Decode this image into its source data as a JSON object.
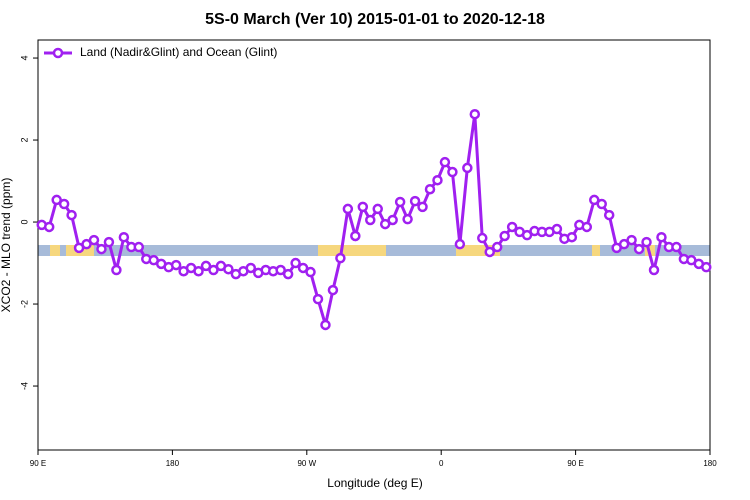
{
  "chart_data": {
    "type": "line",
    "title": "5S-0 March (Ver 10)   2015-01-01 to 2020-12-18",
    "xlabel": "Longitude (deg E)",
    "ylabel": "XCO2 - MLO trend (ppm)",
    "xlim": [
      90,
      540
    ],
    "xticks": [
      {
        "value": 90,
        "label": "90 E"
      },
      {
        "value": 180,
        "label": "180"
      },
      {
        "value": 270,
        "label": "90 W"
      },
      {
        "value": 360,
        "label": "0"
      },
      {
        "value": 450,
        "label": "90 E"
      },
      {
        "value": 540,
        "label": "180"
      }
    ],
    "ylim": [
      -5.56,
      4.44
    ],
    "yticks": [
      -4,
      -2,
      0,
      2,
      4
    ],
    "legend": "top-left",
    "x": [
      92.5,
      97.5,
      102.5,
      107.5,
      112.5,
      117.5,
      122.5,
      127.5,
      132.5,
      137.5,
      142.5,
      147.5,
      152.5,
      157.5,
      162.5,
      167.5,
      172.5,
      177.5,
      182.5,
      187.5,
      192.5,
      197.5,
      202.5,
      207.5,
      212.5,
      217.5,
      222.5,
      227.5,
      232.5,
      237.5,
      242.5,
      247.5,
      252.5,
      257.5,
      262.5,
      267.5,
      272.5,
      277.5,
      282.5,
      287.5,
      292.5,
      297.5,
      302.5,
      307.5,
      312.5,
      317.5,
      322.5,
      327.5,
      332.5,
      337.5,
      342.5,
      347.5,
      352.5,
      357.5,
      362.5,
      367.5,
      372.5,
      377.5,
      382.5,
      387.5,
      392.5,
      397.5,
      402.5,
      407.5,
      412.5,
      417.5,
      422.5,
      427.5,
      432.5,
      437.5,
      442.5,
      447.5,
      452.5,
      457.5,
      462.5,
      467.5,
      472.5,
      477.5,
      482.5,
      487.5,
      492.5,
      497.5,
      502.5,
      507.5,
      512.5,
      517.5,
      522.5,
      527.5,
      532.5,
      537.5
    ],
    "series": [
      {
        "name": "Land (Nadir&Glint) and Ocean (Glint)",
        "color": "#a020f0",
        "values": [
          -0.07,
          -0.12,
          0.54,
          0.44,
          0.17,
          -0.63,
          -0.54,
          -0.44,
          -0.66,
          -0.49,
          -1.17,
          -0.37,
          -0.61,
          -0.61,
          -0.9,
          -0.93,
          -1.02,
          -1.1,
          -1.05,
          -1.2,
          -1.12,
          -1.2,
          -1.07,
          -1.17,
          -1.07,
          -1.15,
          -1.27,
          -1.2,
          -1.12,
          -1.24,
          -1.17,
          -1.2,
          -1.17,
          -1.27,
          -1.0,
          -1.12,
          -1.22,
          -1.88,
          -2.51,
          -1.66,
          -0.88,
          0.32,
          -0.34,
          0.37,
          0.05,
          0.32,
          -0.05,
          0.05,
          0.49,
          0.07,
          0.51,
          0.37,
          0.8,
          1.02,
          1.46,
          1.22,
          -0.54,
          1.32,
          2.63,
          -0.39,
          -0.73,
          -0.61,
          -0.34,
          -0.12,
          -0.24,
          -0.32,
          -0.22,
          -0.24,
          -0.24,
          -0.17,
          -0.41,
          -0.37,
          -0.07,
          -0.12,
          0.54,
          0.44,
          0.17,
          -0.63,
          -0.54,
          -0.44,
          -0.66,
          -0.49,
          -1.17,
          -0.37,
          -0.61,
          -0.61,
          -0.9,
          -0.93,
          -1.02,
          -1.1
        ]
      }
    ]
  }
}
